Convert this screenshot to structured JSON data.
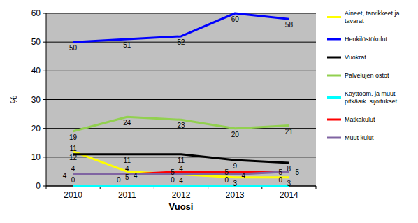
{
  "chart_data": {
    "type": "line",
    "x_label": "Vuosi",
    "y_label": "%",
    "categories": [
      "2010",
      "2011",
      "2012",
      "2013",
      "2014"
    ],
    "ylim": [
      0,
      60
    ],
    "yticks": [
      0,
      10,
      20,
      30,
      40,
      50,
      60
    ],
    "grid": true,
    "legend": "right",
    "data_labels": true,
    "series": [
      {
        "name": "Aineet, tarvikkeet ja tavarat",
        "color": "#ffff00",
        "values": [
          12,
          5,
          4,
          3,
          3
        ]
      },
      {
        "name": "Henkilöstökulut",
        "color": "#0000ff",
        "values": [
          50,
          51,
          52,
          60,
          58
        ]
      },
      {
        "name": "Vuokrat",
        "color": "#000000",
        "values": [
          11,
          11,
          11,
          9,
          8
        ]
      },
      {
        "name": "Palvelujen ostot",
        "color": "#92d050",
        "values": [
          19,
          24,
          23,
          20,
          21
        ]
      },
      {
        "name": "Käyttööm. ja muut pitkäaik. sijoitukset",
        "color": "#00ffff",
        "values": [
          0,
          0,
          0,
          0,
          0
        ]
      },
      {
        "name": "Matkakulut",
        "color": "#ff0000",
        "values": [
          4,
          4,
          5,
          5,
          5
        ]
      },
      {
        "name": "Muut kulut",
        "color": "#8064a2",
        "values": [
          4,
          4,
          4,
          4,
          5
        ]
      }
    ]
  }
}
